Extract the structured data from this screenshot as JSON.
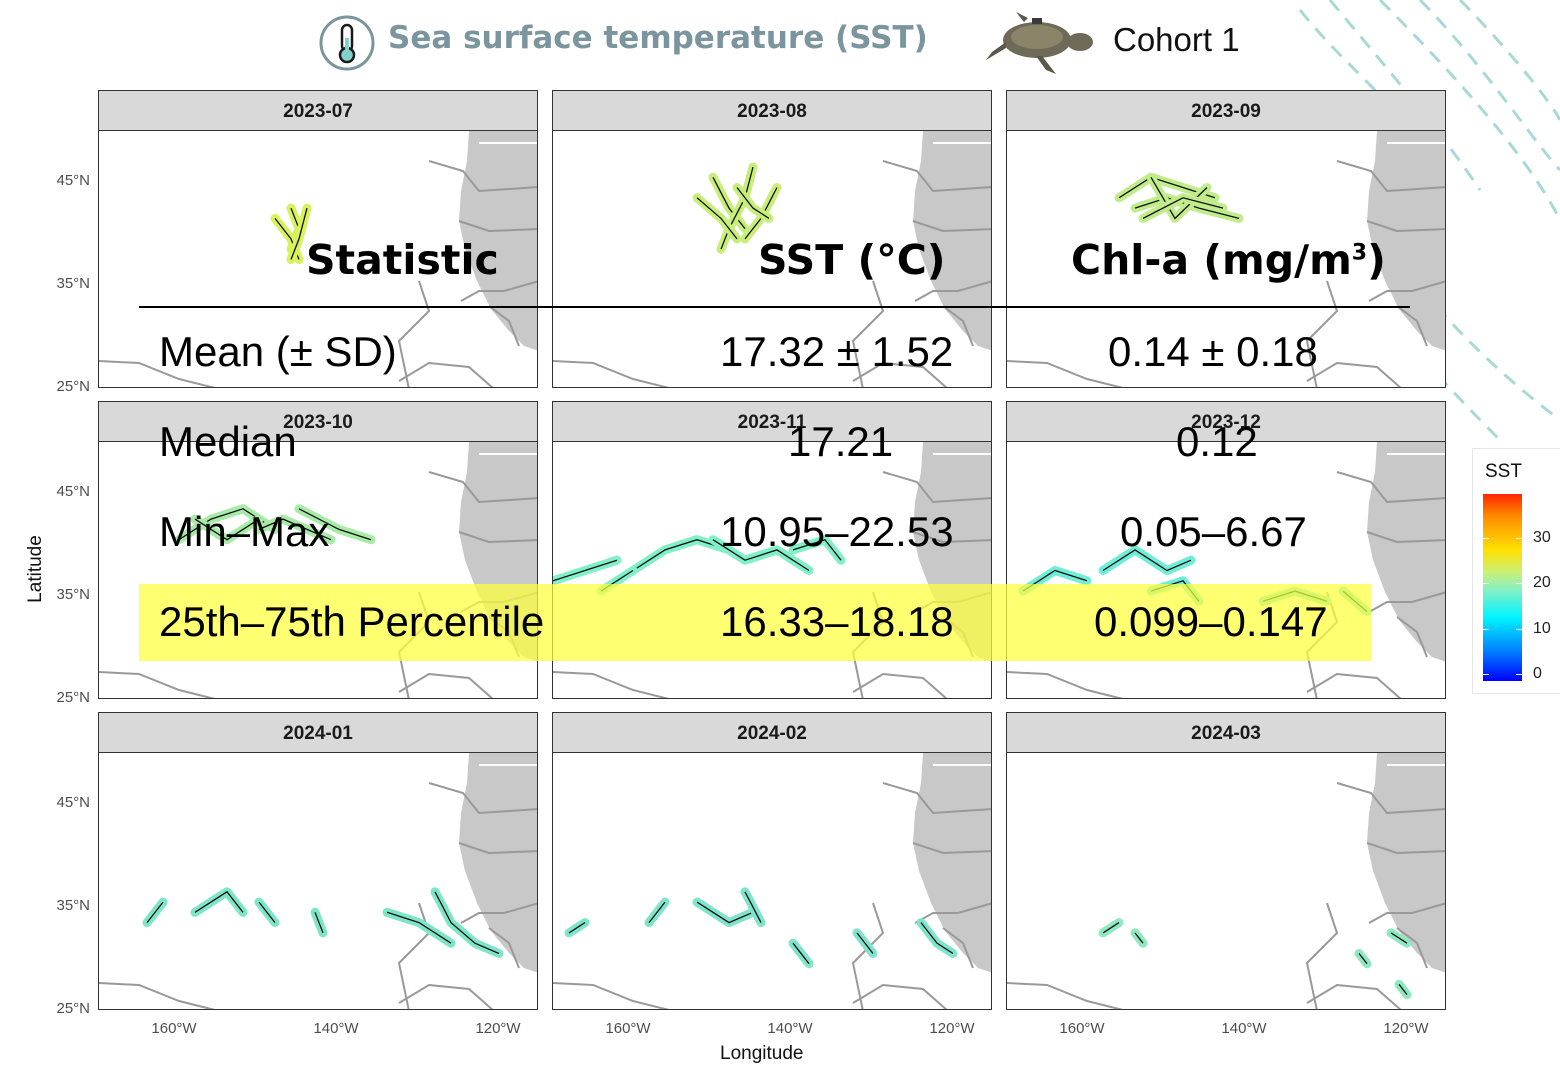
{
  "header": {
    "title": "Sea surface temperature (SST)",
    "cohort_label": "Cohort 1",
    "icons": [
      "thermometer-icon",
      "sea-turtle-image"
    ]
  },
  "facet_map": {
    "panels": [
      {
        "label": "2023-07"
      },
      {
        "label": "2023-08"
      },
      {
        "label": "2023-09"
      },
      {
        "label": "2023-10"
      },
      {
        "label": "2023-11"
      },
      {
        "label": "2023-12"
      },
      {
        "label": "2024-01"
      },
      {
        "label": "2024-02"
      },
      {
        "label": "2024-03"
      }
    ],
    "y_ticks": [
      "45°N",
      "35°N",
      "25°N"
    ],
    "x_ticks": [
      "160°W",
      "140°W",
      "120°W"
    ],
    "xlabel": "Longitude",
    "ylabel": "Latitude",
    "land_color": "#c8c8c8",
    "border_color": "#999999",
    "track_color": "#111111"
  },
  "legend": {
    "title": "SST",
    "ticks": [
      "30",
      "20",
      "10",
      "0"
    ],
    "colors": [
      "#ff2600",
      "#ffe100",
      "#00f5ff",
      "#0000ff"
    ]
  },
  "stats_table": {
    "headers": [
      "Statistic",
      "SST (°C)",
      "Chl-a (mg/m",
      "3",
      ")"
    ],
    "rows": [
      {
        "stat": "Mean (± SD)",
        "sst": "17.32 ± 1.52",
        "chla": "0.14 ± 0.18"
      },
      {
        "stat": "Median",
        "sst": "17.21",
        "chla": "0.12"
      },
      {
        "stat": "Min–Max",
        "sst": "10.95–22.53",
        "chla": "0.05–6.67"
      },
      {
        "stat": "25th–75th Percentile",
        "sst": "16.33–18.18",
        "chla": "0.099–0.147"
      }
    ],
    "highlight_color": "#ffff3c"
  }
}
